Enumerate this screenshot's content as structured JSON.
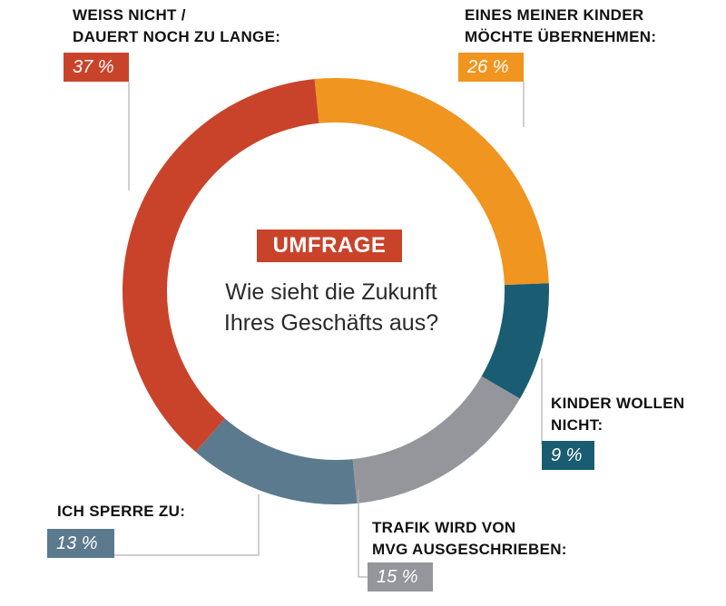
{
  "chart_data": {
    "type": "pie",
    "variant": "donut",
    "center": {
      "tag": "UMFRAGE",
      "question_line1": "Wie sieht die Zukunft",
      "question_line2": "Ihres Geschäfts aus?"
    },
    "slices": [
      {
        "label_line1": "EINES MEINER KINDER",
        "label_line2": "MÖCHTE ÜBERNEHMEN:",
        "value": 26,
        "value_label": "26 %",
        "color": "#f0951f"
      },
      {
        "label_line1": "KINDER WOLLEN",
        "label_line2": "NICHT:",
        "value": 9,
        "value_label": "9 %",
        "color": "#1a5d72"
      },
      {
        "label_line1": "TRAFIK WIRD VON",
        "label_line2": "MVG AUSGESCHRIEBEN:",
        "value": 15,
        "value_label": "15 %",
        "color": "#95969b"
      },
      {
        "label_line1": "ICH SPERRE ZU:",
        "label_line2": "",
        "value": 13,
        "value_label": "13 %",
        "color": "#5c7a8d"
      },
      {
        "label_line1": "WEISS NICHT /",
        "label_line2": "DAUERT NOCH ZU LANGE:",
        "value": 37,
        "value_label": "37 %",
        "color": "#c9432b"
      }
    ],
    "tag_color": "#c9432b",
    "leader_color": "#b0b0b0"
  }
}
